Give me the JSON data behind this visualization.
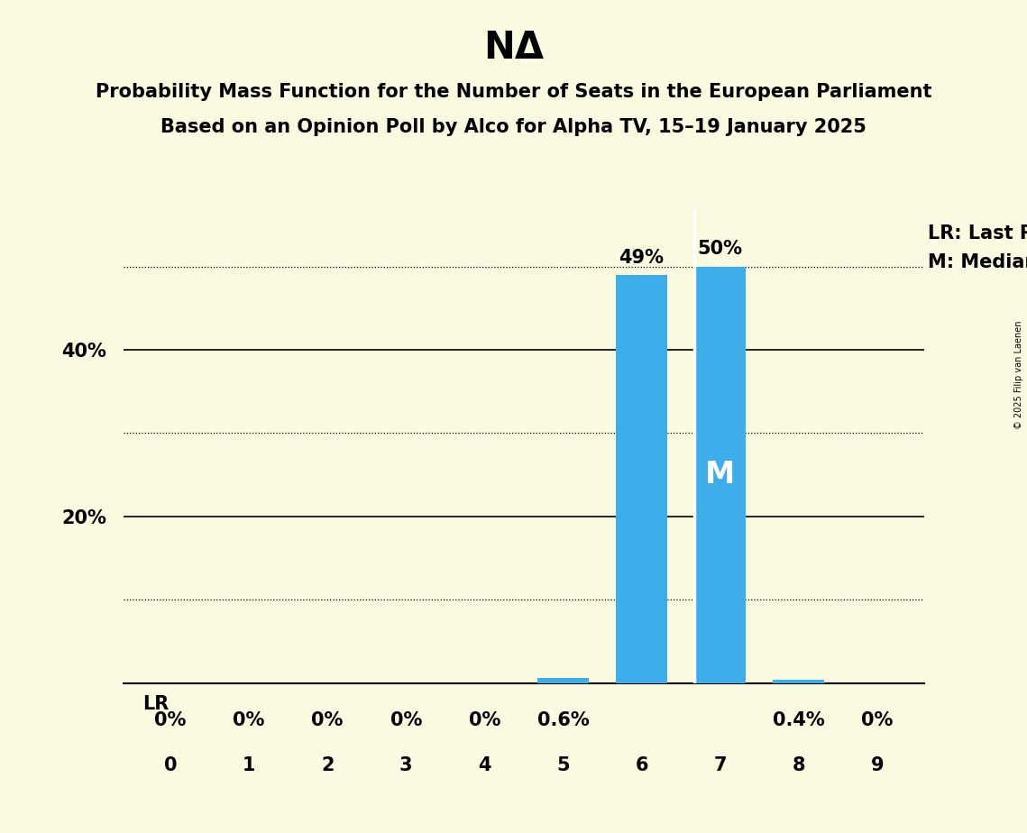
{
  "title": "NΔ",
  "subtitle1": "Probability Mass Function for the Number of Seats in the European Parliament",
  "subtitle2": "Based on an Opinion Poll by Alco for Alpha TV, 15–19 January 2025",
  "copyright": "© 2025 Filip van Laenen",
  "seats": [
    0,
    1,
    2,
    3,
    4,
    5,
    6,
    7,
    8,
    9
  ],
  "probabilities": [
    0.0,
    0.0,
    0.0,
    0.0,
    0.0,
    0.6,
    49.0,
    50.0,
    0.4,
    0.0
  ],
  "bar_color": "#3daee9",
  "background_color": "#fafae0",
  "last_result_seat": 7,
  "median_seat": 7,
  "lr_label": "LR: Last Result",
  "m_label": "M: Median",
  "ylim": [
    0,
    57
  ],
  "yticks_labeled": [
    20,
    40
  ],
  "yticks_dotted": [
    10,
    30,
    50
  ],
  "yticks_solid": [
    20,
    40
  ],
  "bar_width": 0.65,
  "title_fontsize": 30,
  "subtitle_fontsize": 15,
  "tick_fontsize": 15,
  "pct_fontsize": 15,
  "lr_m_fontsize": 15,
  "m_text_fontsize": 24
}
